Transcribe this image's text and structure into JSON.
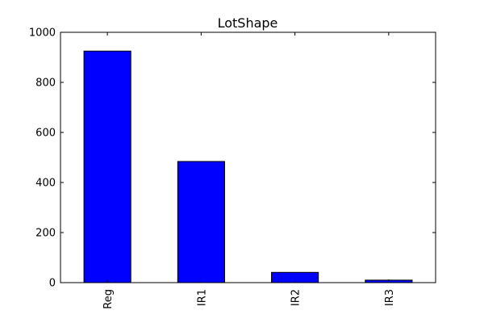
{
  "chart_data": {
    "type": "bar",
    "title": "LotShape",
    "xlabel": "",
    "ylabel": "",
    "categories": [
      "Reg",
      "IR1",
      "IR2",
      "IR3"
    ],
    "values": [
      925,
      484,
      41,
      10
    ],
    "ylim": [
      0,
      1000
    ],
    "yticks": [
      0,
      200,
      400,
      600,
      800,
      1000
    ],
    "grid": false,
    "legend": "none",
    "bar_color": "#0000ff",
    "edge_color": "#000000"
  }
}
